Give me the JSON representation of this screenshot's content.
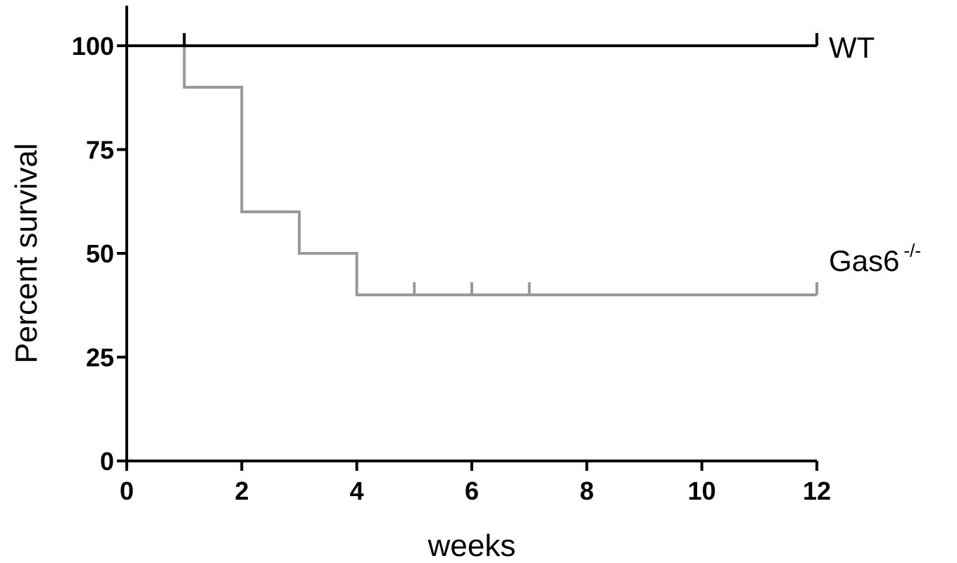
{
  "chart_data": {
    "type": "line",
    "subtype": "kaplan-meier step",
    "xlabel": "weeks",
    "ylabel": "Percent survival",
    "xlim": [
      0,
      12
    ],
    "ylim": [
      0,
      100
    ],
    "xticks": [
      0,
      2,
      4,
      6,
      8,
      10,
      12
    ],
    "yticks": [
      0,
      25,
      50,
      75,
      100
    ],
    "grid": false,
    "series": [
      {
        "name": "WT",
        "color": "#000000",
        "steps": [
          [
            0,
            100
          ],
          [
            12,
            100
          ]
        ],
        "censored": [
          [
            1,
            100
          ],
          [
            12,
            100
          ]
        ]
      },
      {
        "name": "Gas6",
        "name_superscript": "-/-",
        "color": "#999999",
        "steps": [
          [
            0,
            100
          ],
          [
            1,
            90
          ],
          [
            2,
            60
          ],
          [
            3,
            50
          ],
          [
            4,
            40
          ],
          [
            12,
            40
          ]
        ],
        "censored": [
          [
            5,
            40
          ],
          [
            6,
            40
          ],
          [
            7,
            40
          ],
          [
            12,
            40
          ]
        ]
      }
    ]
  }
}
